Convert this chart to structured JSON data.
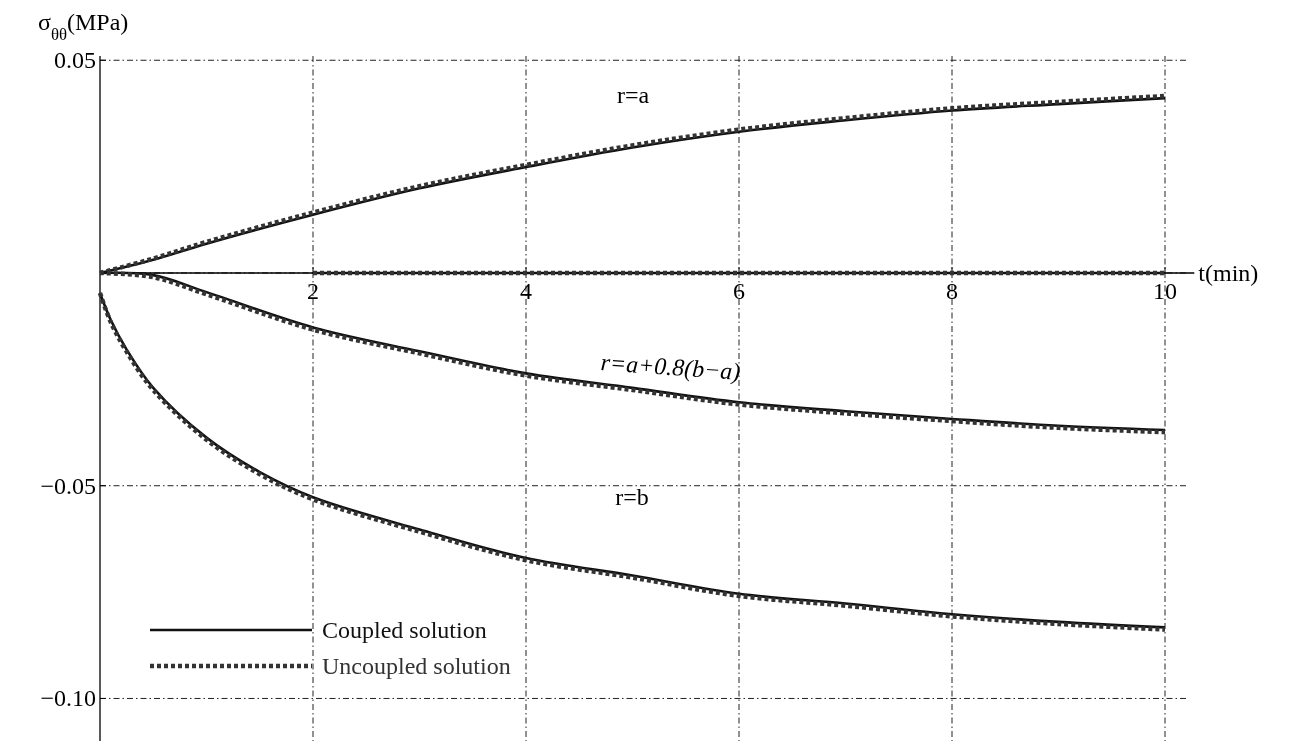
{
  "chart_data": {
    "type": "line",
    "xlabel": "t(min)",
    "ylabel": "σ$_{θθ}$(MPa)",
    "xlim": [
      0,
      10.2
    ],
    "ylim": [
      -0.11,
      0.051
    ],
    "xticks": [
      2,
      4,
      6,
      8,
      10
    ],
    "yticks": [
      {
        "value": 0.05,
        "label": "0.05"
      },
      {
        "value": 0,
        "label": null
      },
      {
        "value": -0.05,
        "label": "−0.05"
      },
      {
        "value": -0.1,
        "label": "−0.10"
      }
    ],
    "grid": true,
    "legend": "bottom left",
    "series": [
      {
        "name": "Coupled solution",
        "color": "#111111",
        "line_style": "solid",
        "x": [
          0,
          0.5,
          1,
          2,
          3,
          4,
          5,
          6,
          7,
          8,
          9,
          10
        ],
        "values": [
          0,
          0.0031,
          0.0069,
          0.0137,
          0.0199,
          0.0249,
          0.0295,
          0.0332,
          0.0359,
          0.0382,
          0.0397,
          0.0411
        ]
      },
      {
        "name": "Uncoupled solution",
        "color": "#333333",
        "line_style": "dotted",
        "x": [
          0,
          0.5,
          1,
          2,
          3,
          4,
          5,
          6,
          7,
          8,
          9,
          10
        ],
        "values": [
          0,
          0.0034,
          0.0073,
          0.0142,
          0.0204,
          0.0254,
          0.03,
          0.0337,
          0.0364,
          0.0387,
          0.0402,
          0.0416
        ]
      },
      {
        "color": "#111111",
        "line_style": "solid",
        "x": [
          2,
          10
        ],
        "values": [
          0,
          0
        ]
      },
      {
        "color": "#333333",
        "line_style": "dotted",
        "x": [
          2,
          10
        ],
        "values": [
          0,
          0
        ]
      },
      {
        "color": "#111111",
        "line_style": "solid",
        "x": [
          0,
          0.5,
          1,
          2,
          3,
          4,
          5,
          6,
          7,
          8,
          9,
          10
        ],
        "values": [
          0,
          -0.0005,
          -0.0045,
          -0.0128,
          -0.0184,
          -0.0236,
          -0.027,
          -0.0304,
          -0.0325,
          -0.0343,
          -0.0359,
          -0.0369
        ]
      },
      {
        "color": "#333333",
        "line_style": "dotted",
        "x": [
          0,
          0.5,
          1,
          2,
          3,
          4,
          5,
          6,
          7,
          8,
          9,
          10
        ],
        "values": [
          0,
          -0.001,
          -0.005,
          -0.0133,
          -0.0189,
          -0.0241,
          -0.0275,
          -0.0309,
          -0.033,
          -0.0348,
          -0.0364,
          -0.0374
        ]
      },
      {
        "color": "#111111",
        "line_style": "solid",
        "x": [
          0,
          0.1,
          0.25,
          0.5,
          1,
          1.5,
          2,
          3,
          4,
          5,
          6,
          7,
          8,
          9,
          10
        ],
        "values": [
          -0.0047,
          -0.011,
          -0.018,
          -0.027,
          -0.0387,
          -0.0468,
          -0.0527,
          -0.0603,
          -0.067,
          -0.0711,
          -0.0754,
          -0.0777,
          -0.0802,
          -0.082,
          -0.0833
        ]
      },
      {
        "color": "#333333",
        "line_style": "dotted",
        "x": [
          0,
          0.1,
          0.25,
          0.5,
          1,
          1.5,
          2,
          3,
          4,
          5,
          6,
          7,
          8,
          9,
          10
        ],
        "values": [
          -0.0047,
          -0.0115,
          -0.0185,
          -0.0275,
          -0.0392,
          -0.0473,
          -0.0532,
          -0.0608,
          -0.0675,
          -0.0716,
          -0.0759,
          -0.0782,
          -0.0807,
          -0.0825,
          -0.0838
        ]
      }
    ],
    "annotations": [
      "r=a",
      "r=a+0.8(b−a)",
      "r=b"
    ]
  }
}
